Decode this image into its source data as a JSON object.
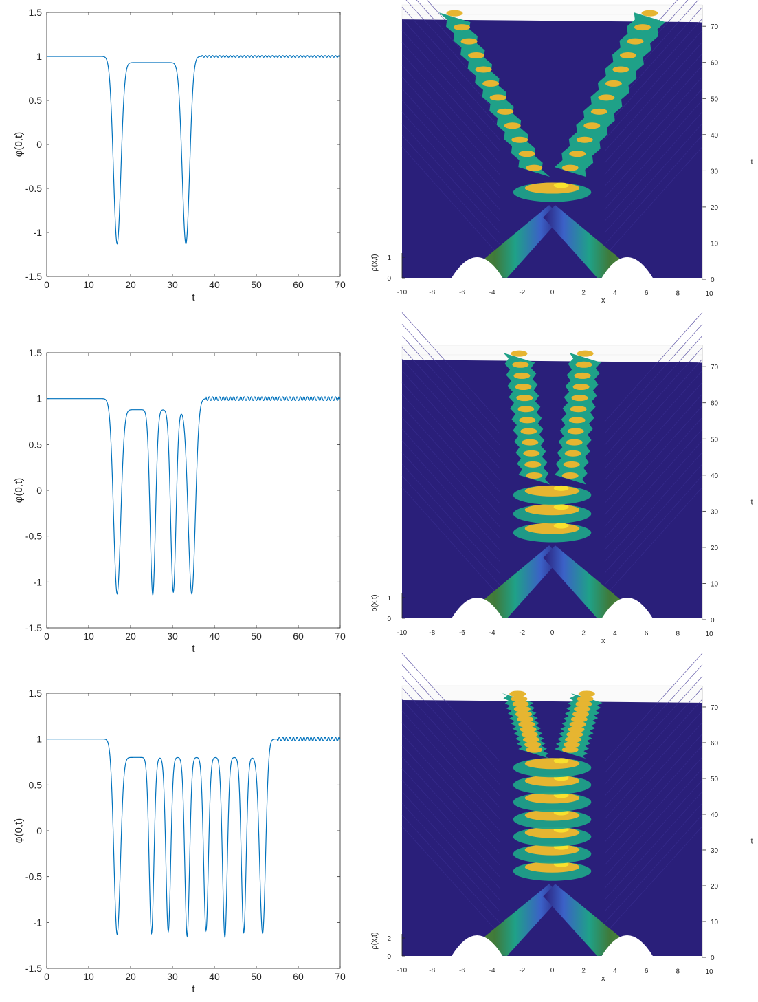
{
  "colors": {
    "line": "#0072BD",
    "axis": "#262626",
    "surface_base": "#2A1F7A",
    "surface_mid": "#1FA188",
    "surface_high": "#E6B531",
    "surface_peak": "#F9E12E"
  },
  "chart_data": [
    {
      "id": "line-1",
      "type": "line",
      "xlabel": "t",
      "ylabel": "φ(0,t)",
      "xlim": [
        0,
        70
      ],
      "ylim": [
        -1.5,
        1.5
      ],
      "xticks": [
        "0",
        "10",
        "20",
        "30",
        "40",
        "50",
        "60",
        "70"
      ],
      "yticks": [
        "1.5",
        "1",
        "0.5",
        "0",
        "-0.5",
        "-1",
        "-1.5"
      ],
      "dips": [
        {
          "t": 16.8,
          "min": -1.13,
          "width": 1.25
        },
        {
          "t": 33.2,
          "min": -1.13,
          "width": 1.25
        }
      ],
      "between_level": 0.93,
      "oscillation_after": 37,
      "oscillation_amplitude": 0.01,
      "points": [
        [
          0,
          1
        ],
        [
          14,
          1
        ],
        [
          15.5,
          0.95
        ],
        [
          16.8,
          -1.13
        ],
        [
          18.2,
          0.85
        ],
        [
          19,
          0.91
        ],
        [
          20,
          0.88
        ],
        [
          22,
          0.96
        ],
        [
          25,
          1.0
        ],
        [
          27,
          0.98
        ],
        [
          28.5,
          0.9
        ],
        [
          30,
          0.98
        ],
        [
          31,
          0.95
        ],
        [
          33.2,
          -1.13
        ],
        [
          35,
          0.95
        ],
        [
          37,
          1.0
        ],
        [
          70,
          1.0
        ]
      ]
    },
    {
      "id": "surface-1",
      "type": "surface3d",
      "xlabel": "x",
      "ylabel": "t",
      "zlabel": "ρ(x,t)",
      "xlim": [
        -10,
        10
      ],
      "ylim": [
        0,
        75
      ],
      "xticks": [
        "-10",
        "-8",
        "-6",
        "-4",
        "-2",
        "0",
        "2",
        "4",
        "6",
        "8",
        "10"
      ],
      "yticks": [
        "0",
        "10",
        "20",
        "30",
        "40",
        "50",
        "60",
        "70"
      ],
      "zticks": [
        "0",
        "1"
      ],
      "initial_centers": [
        -5,
        5
      ],
      "collision_t": 20,
      "final_centers": [
        -6.5,
        6.5
      ],
      "bounces": 1
    },
    {
      "id": "line-2",
      "type": "line",
      "xlabel": "t",
      "ylabel": "φ(0,t)",
      "xlim": [
        0,
        70
      ],
      "ylim": [
        -1.5,
        1.5
      ],
      "xticks": [
        "0",
        "10",
        "20",
        "30",
        "40",
        "50",
        "60",
        "70"
      ],
      "yticks": [
        "1.5",
        "1",
        "0.5",
        "0",
        "-0.5",
        "-1",
        "-1.5"
      ],
      "dips": [
        {
          "t": 16.8,
          "min": -1.13,
          "width": 1.2
        },
        {
          "t": 25.3,
          "min": -1.14,
          "width": 0.9
        },
        {
          "t": 30.2,
          "min": -1.11,
          "width": 0.9
        },
        {
          "t": 34.6,
          "min": -1.13,
          "width": 1.2
        }
      ],
      "between_level": 0.88,
      "oscillation_after": 38,
      "oscillation_amplitude": 0.02,
      "points": [
        [
          0,
          1
        ],
        [
          14,
          1
        ],
        [
          16.8,
          -1.13
        ],
        [
          19,
          0.91
        ],
        [
          23,
          0.87
        ],
        [
          25.3,
          -1.14
        ],
        [
          27.3,
          0.85
        ],
        [
          30.2,
          -1.11
        ],
        [
          32.4,
          0.89
        ],
        [
          34.6,
          -1.13
        ],
        [
          37.5,
          0.98
        ],
        [
          70,
          1.0
        ]
      ]
    },
    {
      "id": "surface-2",
      "type": "surface3d",
      "xlabel": "x",
      "ylabel": "t",
      "zlabel": "ρ(x,t)",
      "xlim": [
        -10,
        10
      ],
      "ylim": [
        0,
        75
      ],
      "xticks": [
        "-10",
        "-8",
        "-6",
        "-4",
        "-2",
        "0",
        "2",
        "4",
        "6",
        "8",
        "10"
      ],
      "yticks": [
        "0",
        "10",
        "20",
        "30",
        "40",
        "50",
        "60",
        "70"
      ],
      "zticks": [
        "0",
        "1"
      ],
      "initial_centers": [
        -5,
        5
      ],
      "collision_t": 20,
      "final_centers": [
        -2.2,
        2.2
      ],
      "bounces": 3
    },
    {
      "id": "line-3",
      "type": "line",
      "xlabel": "t",
      "ylabel": "φ(0,t)",
      "xlim": [
        0,
        70
      ],
      "ylim": [
        -1.5,
        1.5
      ],
      "xticks": [
        "0",
        "10",
        "20",
        "30",
        "40",
        "50",
        "60",
        "70"
      ],
      "yticks": [
        "1.5",
        "1",
        "0.5",
        "0",
        "-0.5",
        "-1",
        "-1.5"
      ],
      "dips": [
        {
          "t": 16.8,
          "min": -1.13,
          "width": 1.1
        },
        {
          "t": 25.0,
          "min": -1.12,
          "width": 0.8
        },
        {
          "t": 29.0,
          "min": -1.1,
          "width": 0.8
        },
        {
          "t": 33.5,
          "min": -1.15,
          "width": 0.8
        },
        {
          "t": 38.0,
          "min": -1.09,
          "width": 0.8
        },
        {
          "t": 42.5,
          "min": -1.16,
          "width": 0.8
        },
        {
          "t": 47.0,
          "min": -1.11,
          "width": 0.8
        },
        {
          "t": 51.5,
          "min": -1.12,
          "width": 1.0
        }
      ],
      "peaks": [
        {
          "t": 19.0,
          "max": 0.91
        },
        {
          "t": 26.5,
          "max": 0.78
        },
        {
          "t": 31.7,
          "max": 0.73
        },
        {
          "t": 35.3,
          "max": 0.72
        },
        {
          "t": 40.7,
          "max": 0.75
        },
        {
          "t": 44.3,
          "max": 0.77
        },
        {
          "t": 49.6,
          "max": 0.83
        }
      ],
      "between_level": 0.8,
      "oscillation_after": 55,
      "oscillation_amplitude": 0.02,
      "points": [
        [
          0,
          1
        ],
        [
          14,
          1
        ],
        [
          16.8,
          -1.13
        ],
        [
          19,
          0.91
        ],
        [
          22,
          0.82
        ],
        [
          25,
          -1.12
        ],
        [
          26.5,
          0.78
        ],
        [
          29,
          -1.1
        ],
        [
          31.7,
          0.73
        ],
        [
          33.5,
          -1.15
        ],
        [
          35.3,
          0.72
        ],
        [
          38,
          -1.09
        ],
        [
          40.7,
          0.75
        ],
        [
          42.5,
          -1.16
        ],
        [
          44.3,
          0.77
        ],
        [
          47,
          -1.11
        ],
        [
          49.6,
          0.83
        ],
        [
          51.5,
          -1.12
        ],
        [
          54.5,
          0.97
        ],
        [
          70,
          1.0
        ]
      ]
    },
    {
      "id": "surface-3",
      "type": "surface3d",
      "xlabel": "x",
      "ylabel": "t",
      "zlabel": "ρ(x,t)",
      "xlim": [
        -10,
        10
      ],
      "ylim": [
        0,
        75
      ],
      "xticks": [
        "-10",
        "-8",
        "-6",
        "-4",
        "-2",
        "0",
        "2",
        "4",
        "6",
        "8",
        "10"
      ],
      "yticks": [
        "0",
        "10",
        "20",
        "30",
        "40",
        "50",
        "60",
        "70"
      ],
      "zticks": [
        "0",
        "2"
      ],
      "initial_centers": [
        -5,
        5
      ],
      "collision_t": 20,
      "final_centers": [
        -2.3,
        2.3
      ],
      "bounces": 7
    }
  ]
}
